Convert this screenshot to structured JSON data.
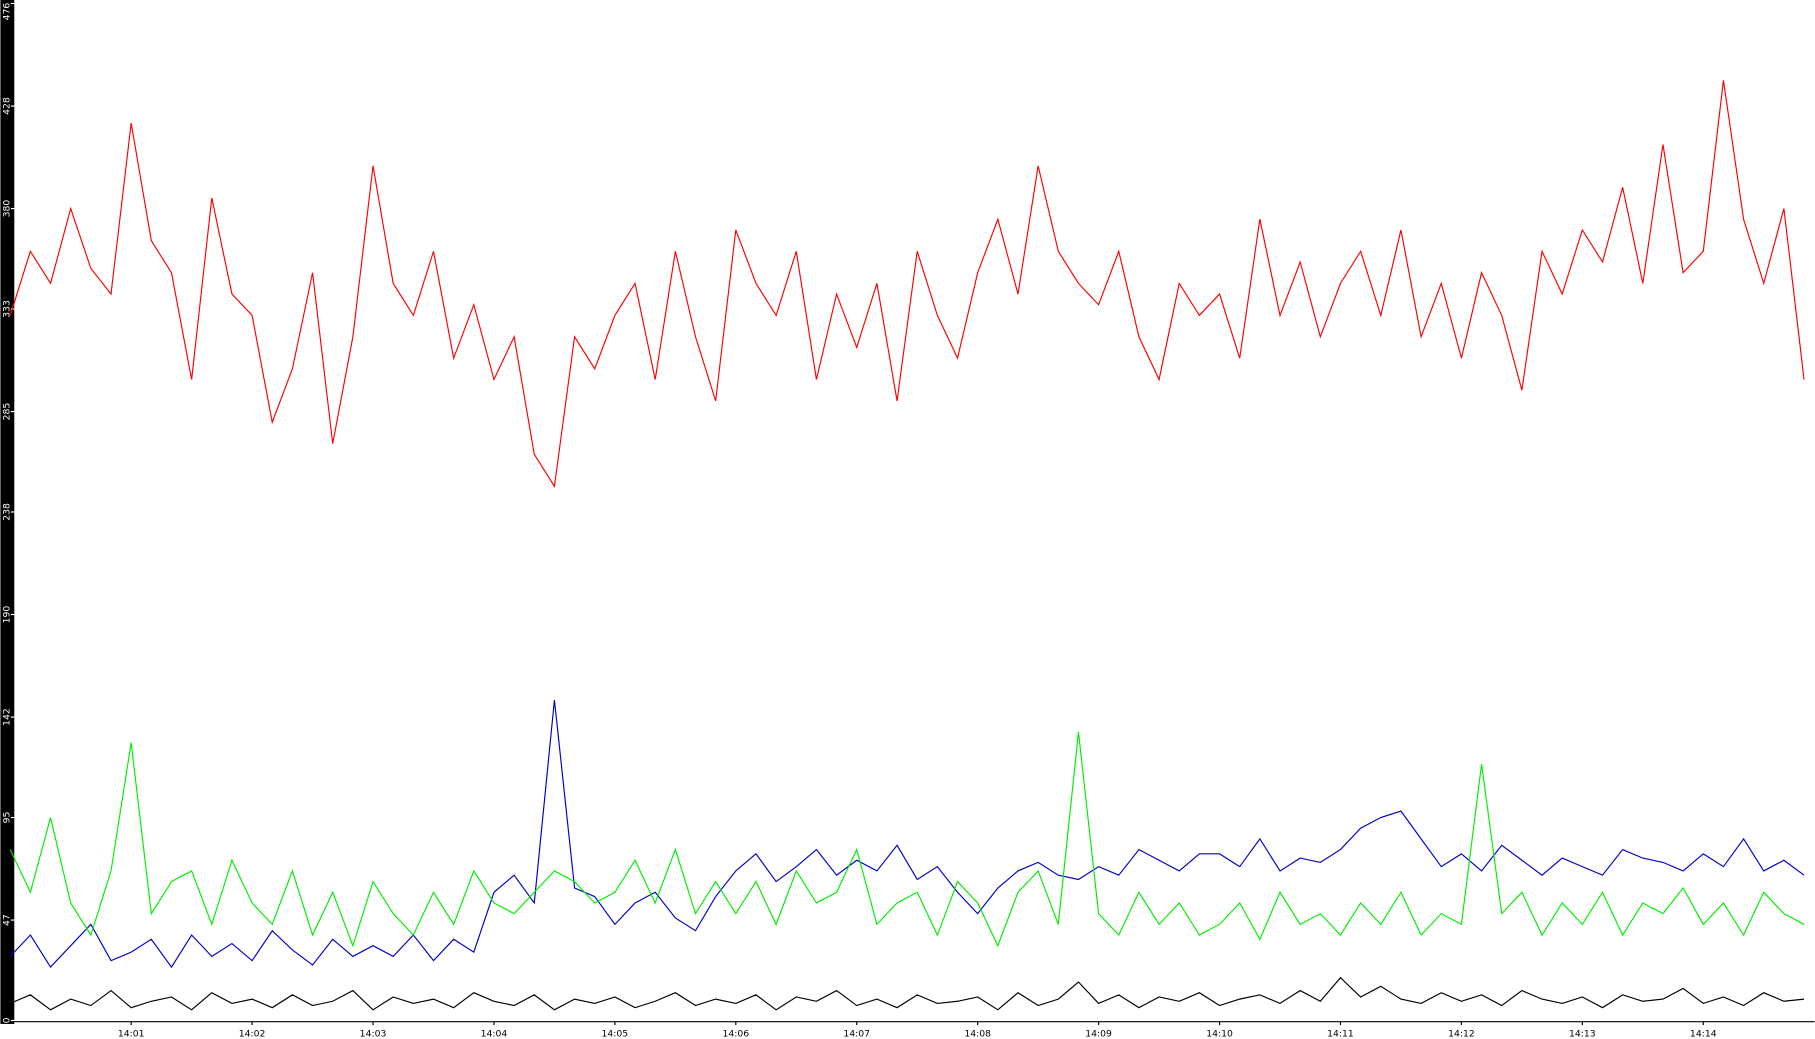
{
  "chart_data": {
    "type": "line",
    "categories": [
      null,
      null,
      null,
      null,
      null,
      null,
      "14:01",
      null,
      null,
      null,
      null,
      null,
      "14:02",
      null,
      null,
      null,
      null,
      null,
      "14:03",
      null,
      null,
      null,
      null,
      null,
      "14:04",
      null,
      null,
      null,
      null,
      null,
      "14:05",
      null,
      null,
      null,
      null,
      null,
      "14:06",
      null,
      null,
      null,
      null,
      null,
      "14:07",
      null,
      null,
      null,
      null,
      null,
      "14:08",
      null,
      null,
      null,
      null,
      null,
      "14:09",
      null,
      null,
      null,
      null,
      null,
      "14:10",
      null,
      null,
      null,
      null,
      null,
      "14:11",
      null,
      null,
      null,
      null,
      null,
      "14:12",
      null,
      null,
      null,
      null,
      null,
      "14:13",
      null,
      null,
      null,
      null,
      null,
      "14:14",
      null,
      null,
      null,
      null,
      null
    ],
    "ylim": [
      0,
      476
    ],
    "yticks": [
      0,
      47,
      95,
      142,
      190,
      238,
      285,
      333,
      380,
      428,
      476
    ],
    "series": [
      {
        "color": "#ff0000",
        "values": [
          330,
          360,
          345,
          380,
          352,
          340,
          420,
          365,
          350,
          300,
          385,
          340,
          330,
          280,
          305,
          350,
          270,
          320,
          400,
          345,
          330,
          360,
          310,
          335,
          300,
          320,
          265,
          250,
          320,
          305,
          330,
          345,
          300,
          360,
          320,
          290,
          370,
          345,
          330,
          360,
          300,
          340,
          315,
          345,
          290,
          360,
          330,
          310,
          350,
          375,
          340,
          400,
          360,
          345,
          335,
          360,
          320,
          300,
          345,
          330,
          340,
          310,
          375,
          330,
          355,
          320,
          345,
          360,
          330,
          370,
          320,
          345,
          310,
          350,
          330,
          295,
          360,
          340,
          370,
          355,
          390,
          345,
          410,
          350,
          360,
          440,
          375,
          345,
          380,
          300
        ]
      },
      {
        "color": "#0000cc",
        "values": [
          30,
          40,
          25,
          35,
          45,
          28,
          32,
          38,
          25,
          40,
          30,
          36,
          28,
          42,
          33,
          26,
          38,
          30,
          35,
          30,
          40,
          28,
          38,
          32,
          60,
          68,
          55,
          150,
          62,
          58,
          45,
          55,
          60,
          48,
          42,
          58,
          70,
          78,
          65,
          72,
          80,
          68,
          75,
          70,
          82,
          66,
          72,
          60,
          50,
          62,
          70,
          74,
          68,
          66,
          72,
          68,
          80,
          75,
          70,
          78,
          78,
          72,
          85,
          70,
          76,
          74,
          80,
          90,
          95,
          98,
          85,
          72,
          78,
          70,
          82,
          75,
          68,
          76,
          72,
          68,
          80,
          76,
          74,
          70,
          78,
          72,
          85,
          70,
          75,
          68
        ]
      },
      {
        "color": "#00ee00",
        "values": [
          80,
          60,
          95,
          55,
          40,
          70,
          130,
          50,
          65,
          70,
          45,
          75,
          55,
          45,
          70,
          40,
          60,
          35,
          65,
          50,
          40,
          60,
          45,
          70,
          55,
          50,
          60,
          70,
          65,
          55,
          60,
          75,
          55,
          80,
          50,
          65,
          50,
          65,
          45,
          70,
          55,
          60,
          80,
          45,
          55,
          60,
          40,
          65,
          55,
          35,
          60,
          70,
          45,
          135,
          50,
          40,
          60,
          45,
          55,
          40,
          45,
          55,
          38,
          60,
          45,
          50,
          40,
          55,
          45,
          60,
          40,
          50,
          45,
          120,
          50,
          60,
          40,
          55,
          45,
          60,
          40,
          55,
          50,
          62,
          45,
          55,
          40,
          60,
          50,
          45
        ]
      },
      {
        "color": "#000000",
        "values": [
          8,
          12,
          5,
          10,
          7,
          14,
          6,
          9,
          11,
          5,
          13,
          8,
          10,
          6,
          12,
          7,
          9,
          14,
          5,
          11,
          8,
          10,
          6,
          13,
          9,
          7,
          12,
          5,
          10,
          8,
          11,
          6,
          9,
          13,
          7,
          10,
          8,
          12,
          5,
          11,
          9,
          14,
          7,
          10,
          6,
          12,
          8,
          9,
          11,
          5,
          13,
          7,
          10,
          18,
          8,
          12,
          6,
          11,
          9,
          13,
          7,
          10,
          12,
          8,
          14,
          9,
          20,
          11,
          16,
          10,
          8,
          13,
          9,
          12,
          7,
          14,
          10,
          8,
          11,
          6,
          12,
          9,
          10,
          15,
          8,
          11,
          7,
          13,
          9,
          10
        ]
      }
    ]
  }
}
